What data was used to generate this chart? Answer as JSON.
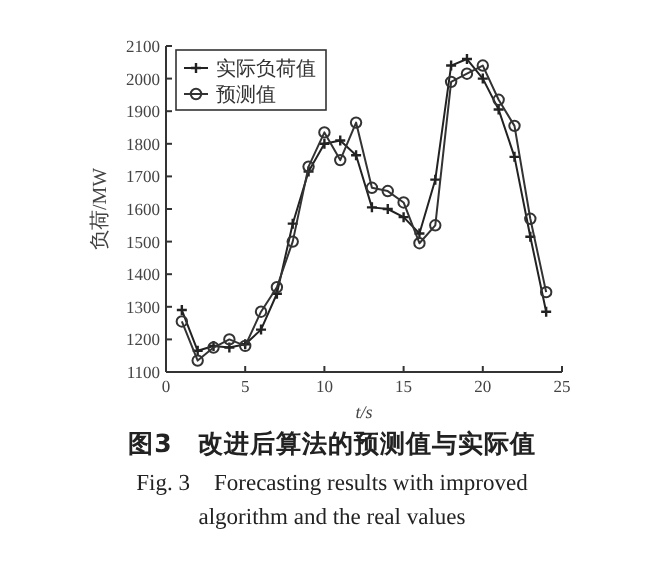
{
  "chart_data": {
    "type": "line",
    "title": "图3　改进后算法的预测值与实际值",
    "subtitle": "Fig. 3　Forecasting results with improved algorithm and the real values",
    "xlabel": "t/s",
    "ylabel": "负荷/MW",
    "x": [
      1,
      2,
      3,
      4,
      5,
      6,
      7,
      8,
      9,
      10,
      11,
      12,
      13,
      14,
      15,
      16,
      17,
      18,
      19,
      20,
      21,
      22,
      23,
      24
    ],
    "series": [
      {
        "name": "实际负荷值",
        "color": "#222222",
        "marker": "cross",
        "values": [
          1290,
          1165,
          1180,
          1175,
          1185,
          1230,
          1340,
          1555,
          1715,
          1800,
          1810,
          1765,
          1605,
          1600,
          1575,
          1525,
          1690,
          2040,
          2060,
          2000,
          1905,
          1760,
          1515,
          1285
        ]
      },
      {
        "name": "预测值",
        "color": "#333333",
        "marker": "circle",
        "values": [
          1255,
          1135,
          1175,
          1200,
          1180,
          1285,
          1360,
          1500,
          1730,
          1835,
          1750,
          1865,
          1665,
          1655,
          1620,
          1495,
          1550,
          1990,
          2015,
          2040,
          1935,
          1855,
          1570,
          1345
        ]
      }
    ],
    "xlim": [
      0,
      25
    ],
    "xticks": [
      0,
      5,
      10,
      15,
      20,
      25
    ],
    "ylim": [
      1100,
      2100
    ],
    "yticks": [
      1100,
      1200,
      1300,
      1400,
      1500,
      1600,
      1700,
      1800,
      1900,
      2000,
      2100
    ],
    "legend": "top left",
    "grid": false,
    "line_style": "solid"
  }
}
